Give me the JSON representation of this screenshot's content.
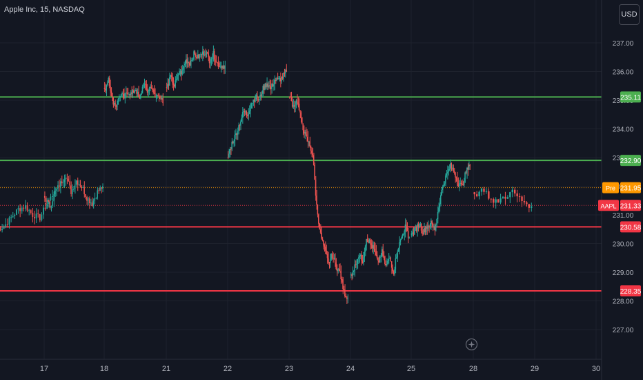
{
  "header": {
    "symbol_title": "Apple Inc, 15, NASDAQ"
  },
  "toolbar": {
    "currency_label": "USD"
  },
  "colors": {
    "background": "#131722",
    "grid": "#1e222d",
    "axis_text": "#b2b5be",
    "candle_up": "#26a69a",
    "candle_down": "#ef5350",
    "support_resistance_green": "#4caf50",
    "support_resistance_red": "#f23645",
    "pre_market": "#ff9800",
    "last_price": "#f23645"
  },
  "chart_data": {
    "type": "candlestick",
    "title": "Apple Inc, 15, NASDAQ",
    "y_axis": {
      "ticks": [
        "237.00",
        "236.00",
        "235.00",
        "234.00",
        "233.00",
        "232.00",
        "231.00",
        "230.00",
        "229.00",
        "228.00",
        "227.00"
      ],
      "ylim": [
        226.4,
        238.2
      ]
    },
    "x_axis": {
      "ticks": [
        "17",
        "18",
        "21",
        "22",
        "23",
        "24",
        "25",
        "28",
        "29",
        "30"
      ]
    },
    "price_lines": [
      {
        "value": 235.11,
        "label": "235.11",
        "color": "#4caf50"
      },
      {
        "value": 232.9,
        "label": "232.90",
        "color": "#4caf50"
      },
      {
        "value": 230.58,
        "label": "230.58",
        "color": "#f23645"
      },
      {
        "value": 228.35,
        "label": "228.35",
        "color": "#f23645"
      }
    ],
    "markers": [
      {
        "tag": "Pre",
        "value": 231.95,
        "label": "231.95",
        "color": "#ff9800"
      },
      {
        "tag": "AAPL",
        "value": 231.33,
        "label": "231.33",
        "color": "#f23645"
      }
    ],
    "session_close_segments": [
      {
        "day": "16",
        "close_path": [
          230.5,
          230.6,
          230.9,
          231.2,
          231.3,
          231.0,
          230.9,
          231.4,
          231.8
        ]
      },
      {
        "day": "17",
        "close_path": [
          231.6,
          231.3,
          231.8,
          232.1,
          232.4,
          231.8,
          232.2,
          232.0,
          231.6,
          231.4,
          231.8,
          232.0
        ]
      },
      {
        "day": "18",
        "close_path": [
          235.3,
          235.8,
          235.0,
          234.8,
          235.2,
          235.1,
          235.3,
          235.2,
          235.4,
          235.0,
          235.6,
          235.3,
          235.5,
          235.1,
          235.2,
          234.9
        ]
      },
      {
        "day": "21",
        "close_path": [
          235.4,
          235.8,
          235.5,
          235.9,
          236.0,
          236.4,
          236.3,
          236.6,
          236.5,
          236.6,
          236.7,
          236.4,
          236.6,
          236.3,
          236.2,
          236.2
        ]
      },
      {
        "day": "22",
        "close_path": [
          233.0,
          233.5,
          233.8,
          234.2,
          234.6,
          234.5,
          234.9,
          235.1,
          235.0,
          235.4,
          235.6,
          235.4,
          235.7,
          235.7,
          235.8,
          236.0
        ]
      },
      {
        "day": "23",
        "close_path": [
          235.1,
          234.8,
          235.0,
          234.3,
          233.8,
          233.5,
          233.1,
          231.3,
          230.3,
          229.8,
          229.3,
          229.6,
          229.2,
          229.0,
          228.3,
          228.1
        ]
      },
      {
        "day": "24",
        "close_path": [
          228.9,
          229.2,
          229.6,
          229.4,
          230.2,
          230.0,
          229.8,
          229.3,
          229.7,
          229.2,
          229.5,
          229.0,
          229.8,
          230.2,
          230.6,
          230.2
        ]
      },
      {
        "day": "25",
        "close_path": [
          230.3,
          230.5,
          230.7,
          230.4,
          230.6,
          230.7,
          230.5,
          231.3,
          232.0,
          232.4,
          232.7,
          232.5,
          232.1,
          232.0,
          232.5,
          232.7
        ]
      },
      {
        "day": "28",
        "close_path": [
          231.7,
          231.9,
          231.4,
          231.6,
          231.8,
          231.5,
          231.3
        ]
      }
    ]
  }
}
